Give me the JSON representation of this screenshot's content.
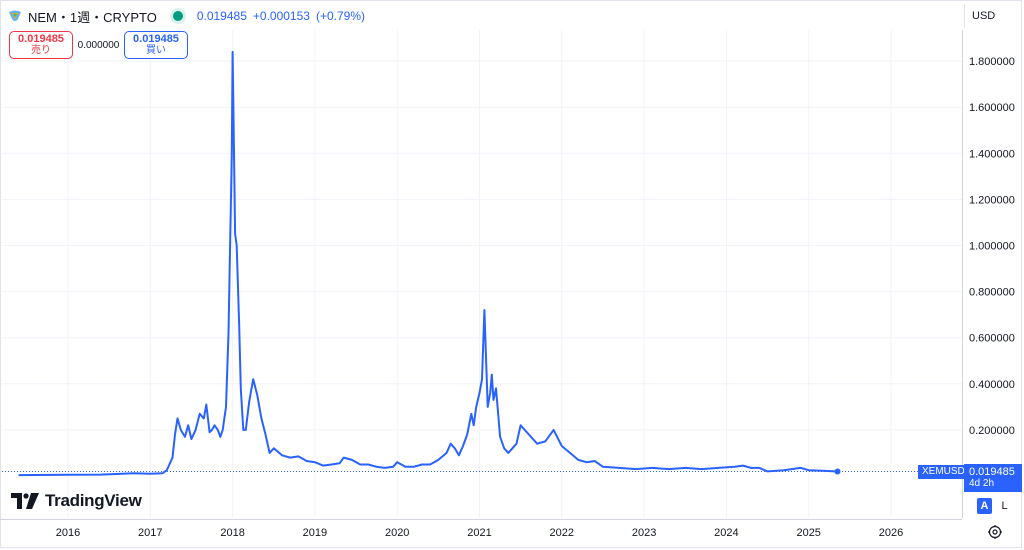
{
  "header": {
    "symbol_title": "NEM・1週・CRYPTO",
    "price": "0.019485",
    "change": "+0.000153",
    "change_pct": "(+0.79%)"
  },
  "order": {
    "sell_price": "0.019485",
    "sell_label": "売り",
    "spread": "0.000000",
    "buy_price": "0.019485",
    "buy_label": "買い"
  },
  "currency": "USD",
  "last_price_badge": {
    "symbol": "XEMUSD",
    "price": "0.019485",
    "countdown": "4d 2h"
  },
  "scale_buttons": {
    "auto": "A",
    "log": "L"
  },
  "branding": "TradingView",
  "colors": {
    "line": "#2962ff",
    "sell": "#f23645",
    "buy": "#2962ff",
    "status": "#089981"
  },
  "chart_data": {
    "type": "line",
    "y_ticks": [
      "0.200000",
      "0.400000",
      "0.600000",
      "0.800000",
      "1.000000",
      "1.200000",
      "1.400000",
      "1.600000",
      "1.800000"
    ],
    "x_ticks": [
      "2016",
      "2017",
      "2018",
      "2019",
      "2020",
      "2021",
      "2022",
      "2023",
      "2024",
      "2025",
      "2026"
    ],
    "ylim": [
      0,
      1.9
    ],
    "xlim": [
      2015.4,
      2026.5
    ],
    "series": [
      {
        "x": [
          2015.4,
          2016.0,
          2016.4,
          2016.8,
          2017.0,
          2017.15,
          2017.2,
          2017.27,
          2017.3,
          2017.33,
          2017.37,
          2017.42,
          2017.46,
          2017.5,
          2017.55,
          2017.6,
          2017.65,
          2017.68,
          2017.72,
          2017.75,
          2017.78,
          2017.82,
          2017.85,
          2017.88,
          2017.92,
          2017.95,
          2017.97,
          2017.99,
          2018.0,
          2018.01,
          2018.03,
          2018.05,
          2018.08,
          2018.1,
          2018.13,
          2018.16,
          2018.2,
          2018.25,
          2018.3,
          2018.35,
          2018.4,
          2018.45,
          2018.5,
          2018.6,
          2018.7,
          2018.8,
          2018.9,
          2019.0,
          2019.1,
          2019.2,
          2019.3,
          2019.35,
          2019.45,
          2019.55,
          2019.65,
          2019.75,
          2019.85,
          2019.95,
          2020.0,
          2020.05,
          2020.1,
          2020.2,
          2020.3,
          2020.4,
          2020.5,
          2020.6,
          2020.65,
          2020.7,
          2020.75,
          2020.8,
          2020.85,
          2020.9,
          2020.93,
          2020.96,
          2021.0,
          2021.03,
          2021.06,
          2021.1,
          2021.13,
          2021.15,
          2021.17,
          2021.2,
          2021.25,
          2021.3,
          2021.35,
          2021.4,
          2021.45,
          2021.5,
          2021.6,
          2021.7,
          2021.8,
          2021.9,
          2022.0,
          2022.1,
          2022.2,
          2022.3,
          2022.4,
          2022.5,
          2022.7,
          2022.9,
          2023.1,
          2023.3,
          2023.5,
          2023.7,
          2023.9,
          2024.1,
          2024.2,
          2024.3,
          2024.4,
          2024.5,
          2024.7,
          2024.9,
          2025.0,
          2025.2,
          2025.35
        ],
        "y": [
          0.004,
          0.005,
          0.006,
          0.012,
          0.01,
          0.012,
          0.025,
          0.08,
          0.18,
          0.25,
          0.2,
          0.17,
          0.22,
          0.16,
          0.2,
          0.27,
          0.25,
          0.31,
          0.19,
          0.2,
          0.22,
          0.2,
          0.17,
          0.2,
          0.3,
          0.62,
          1.0,
          1.4,
          1.84,
          1.6,
          1.05,
          1.0,
          0.65,
          0.38,
          0.2,
          0.2,
          0.32,
          0.42,
          0.35,
          0.25,
          0.18,
          0.1,
          0.12,
          0.09,
          0.08,
          0.085,
          0.065,
          0.06,
          0.045,
          0.05,
          0.055,
          0.08,
          0.07,
          0.05,
          0.05,
          0.04,
          0.035,
          0.04,
          0.06,
          0.05,
          0.04,
          0.04,
          0.05,
          0.05,
          0.07,
          0.1,
          0.14,
          0.12,
          0.09,
          0.13,
          0.18,
          0.27,
          0.22,
          0.3,
          0.36,
          0.42,
          0.72,
          0.3,
          0.36,
          0.44,
          0.33,
          0.38,
          0.17,
          0.12,
          0.1,
          0.12,
          0.14,
          0.22,
          0.18,
          0.14,
          0.15,
          0.2,
          0.13,
          0.1,
          0.07,
          0.06,
          0.065,
          0.04,
          0.035,
          0.03,
          0.035,
          0.03,
          0.035,
          0.03,
          0.035,
          0.04,
          0.045,
          0.035,
          0.035,
          0.02,
          0.025,
          0.035,
          0.025,
          0.022,
          0.019485
        ]
      }
    ]
  }
}
